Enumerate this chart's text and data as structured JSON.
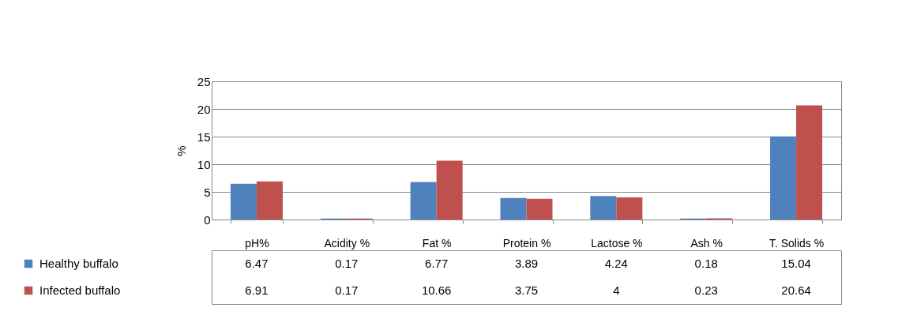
{
  "chart_data": {
    "type": "bar",
    "ylabel": "%",
    "categories": [
      "pH%",
      "Acidity %",
      "Fat  %",
      "Protein %",
      "Lactose %",
      "Ash %",
      "T. Solids %"
    ],
    "series": [
      {
        "name": "Healthy buffalo",
        "color": "#4f81bd",
        "values": [
          6.47,
          0.17,
          6.77,
          3.89,
          4.24,
          0.18,
          15.04
        ]
      },
      {
        "name": "Infected buffalo",
        "color": "#c0504d",
        "values": [
          6.91,
          0.17,
          10.66,
          3.75,
          4,
          0.23,
          20.64
        ]
      }
    ],
    "ylim": [
      0,
      25
    ],
    "yticks": [
      0,
      5,
      10,
      15,
      20,
      25
    ],
    "grid": "y",
    "legend": "bottom",
    "data_labels": true
  }
}
